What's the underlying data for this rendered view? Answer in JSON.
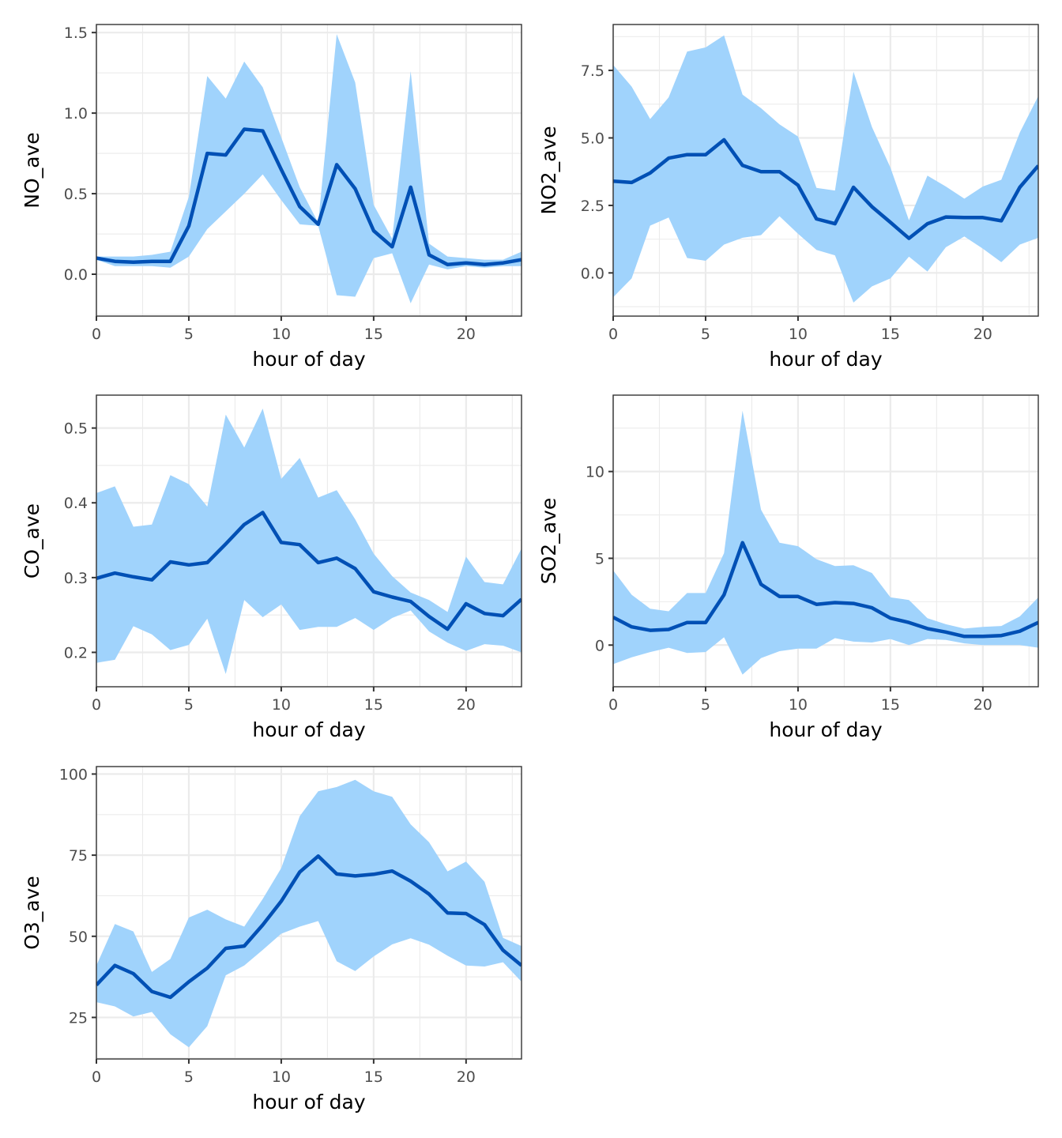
{
  "chart_data": [
    {
      "type": "area",
      "id": "no",
      "title": "",
      "xlabel": "hour of day",
      "ylabel": "NO_ave",
      "xlim": [
        0,
        23
      ],
      "ylim": [
        -0.26,
        1.55
      ],
      "xticks": [
        0,
        5,
        10,
        15,
        20
      ],
      "xtick_labels": [
        "0",
        "5",
        "10",
        "15",
        "20"
      ],
      "yticks": [
        0.0,
        0.5,
        1.0,
        1.5
      ],
      "ytick_labels": [
        "0.0",
        "0.5",
        "1.0",
        "1.5"
      ],
      "grid": true,
      "x": [
        0,
        1,
        2,
        3,
        4,
        5,
        6,
        7,
        8,
        9,
        10,
        11,
        12,
        13,
        14,
        15,
        16,
        17,
        18,
        19,
        20,
        21,
        22,
        23
      ],
      "series": [
        {
          "name": "mean",
          "values": [
            0.1,
            0.08,
            0.075,
            0.08,
            0.08,
            0.3,
            0.75,
            0.74,
            0.9,
            0.89,
            0.65,
            0.42,
            0.31,
            0.68,
            0.53,
            0.27,
            0.17,
            0.54,
            0.12,
            0.06,
            0.07,
            0.06,
            0.07,
            0.09
          ]
        },
        {
          "name": "upper",
          "values": [
            0.11,
            0.11,
            0.11,
            0.12,
            0.14,
            0.48,
            1.23,
            1.09,
            1.32,
            1.16,
            0.85,
            0.54,
            0.32,
            1.49,
            1.19,
            0.43,
            0.22,
            1.26,
            0.19,
            0.11,
            0.1,
            0.09,
            0.09,
            0.14
          ]
        },
        {
          "name": "lower",
          "values": [
            0.09,
            0.05,
            0.05,
            0.05,
            0.04,
            0.11,
            0.28,
            0.39,
            0.5,
            0.62,
            0.46,
            0.31,
            0.3,
            -0.13,
            -0.14,
            0.1,
            0.13,
            -0.18,
            0.06,
            0.03,
            0.05,
            0.04,
            0.05,
            0.05
          ]
        }
      ]
    },
    {
      "type": "area",
      "id": "no2",
      "title": "",
      "xlabel": "hour of day",
      "ylabel": "NO2_ave",
      "xlim": [
        0,
        23
      ],
      "ylim": [
        -1.6,
        9.2
      ],
      "xticks": [
        0,
        5,
        10,
        15,
        20
      ],
      "xtick_labels": [
        "0",
        "5",
        "10",
        "15",
        "20"
      ],
      "yticks": [
        0.0,
        2.5,
        5.0,
        7.5
      ],
      "ytick_labels": [
        "0.0",
        "2.5",
        "5.0",
        "7.5"
      ],
      "grid": true,
      "x": [
        0,
        1,
        2,
        3,
        4,
        5,
        6,
        7,
        8,
        9,
        10,
        11,
        12,
        13,
        14,
        15,
        16,
        17,
        18,
        19,
        20,
        21,
        22,
        23
      ],
      "series": [
        {
          "name": "mean",
          "values": [
            3.4,
            3.35,
            3.7,
            4.25,
            4.38,
            4.38,
            4.93,
            3.98,
            3.75,
            3.75,
            3.25,
            2.0,
            1.82,
            3.17,
            2.45,
            1.87,
            1.28,
            1.82,
            2.07,
            2.05,
            2.05,
            1.93,
            3.17,
            3.97
          ]
        },
        {
          "name": "upper",
          "values": [
            7.7,
            6.9,
            5.7,
            6.5,
            8.2,
            8.35,
            8.8,
            6.6,
            6.1,
            5.5,
            5.05,
            3.15,
            3.05,
            7.45,
            5.4,
            3.9,
            1.95,
            3.6,
            3.2,
            2.75,
            3.2,
            3.45,
            5.2,
            6.55
          ]
        },
        {
          "name": "lower",
          "values": [
            -0.9,
            -0.2,
            1.75,
            2.05,
            0.55,
            0.45,
            1.05,
            1.3,
            1.4,
            2.1,
            1.45,
            0.85,
            0.65,
            -1.1,
            -0.5,
            -0.2,
            0.6,
            0.05,
            0.95,
            1.35,
            0.9,
            0.4,
            1.05,
            1.3
          ]
        }
      ]
    },
    {
      "type": "area",
      "id": "co",
      "title": "",
      "xlabel": "hour of day",
      "ylabel": "CO_ave",
      "xlim": [
        0,
        23
      ],
      "ylim": [
        0.154,
        0.544
      ],
      "xticks": [
        0,
        5,
        10,
        15,
        20
      ],
      "xtick_labels": [
        "0",
        "5",
        "10",
        "15",
        "20"
      ],
      "yticks": [
        0.2,
        0.3,
        0.4,
        0.5
      ],
      "ytick_labels": [
        "0.2",
        "0.3",
        "0.4",
        "0.5"
      ],
      "grid": true,
      "x": [
        0,
        1,
        2,
        3,
        4,
        5,
        6,
        7,
        8,
        9,
        10,
        11,
        12,
        13,
        14,
        15,
        16,
        17,
        18,
        19,
        20,
        21,
        22,
        23
      ],
      "series": [
        {
          "name": "mean",
          "values": [
            0.299,
            0.306,
            0.301,
            0.297,
            0.321,
            0.317,
            0.32,
            0.345,
            0.371,
            0.387,
            0.347,
            0.344,
            0.32,
            0.326,
            0.312,
            0.281,
            0.274,
            0.268,
            0.248,
            0.231,
            0.265,
            0.252,
            0.249,
            0.271
          ]
        },
        {
          "name": "upper",
          "values": [
            0.413,
            0.422,
            0.368,
            0.371,
            0.437,
            0.425,
            0.395,
            0.518,
            0.474,
            0.526,
            0.432,
            0.46,
            0.407,
            0.417,
            0.378,
            0.332,
            0.302,
            0.28,
            0.27,
            0.254,
            0.328,
            0.294,
            0.291,
            0.339
          ]
        },
        {
          "name": "lower",
          "values": [
            0.186,
            0.19,
            0.235,
            0.224,
            0.203,
            0.21,
            0.245,
            0.171,
            0.27,
            0.247,
            0.264,
            0.23,
            0.234,
            0.234,
            0.246,
            0.23,
            0.246,
            0.256,
            0.228,
            0.213,
            0.202,
            0.211,
            0.209,
            0.2
          ]
        }
      ]
    },
    {
      "type": "area",
      "id": "so2",
      "title": "",
      "xlabel": "hour of day",
      "ylabel": "SO2_ave",
      "xlim": [
        0,
        23
      ],
      "ylim": [
        -2.4,
        14.4
      ],
      "xticks": [
        0,
        5,
        10,
        15,
        20
      ],
      "xtick_labels": [
        "0",
        "5",
        "10",
        "15",
        "20"
      ],
      "yticks": [
        0,
        5,
        10
      ],
      "ytick_labels": [
        "0",
        "5",
        "10"
      ],
      "grid": true,
      "x": [
        0,
        1,
        2,
        3,
        4,
        5,
        6,
        7,
        8,
        9,
        10,
        11,
        12,
        13,
        14,
        15,
        16,
        17,
        18,
        19,
        20,
        21,
        22,
        23
      ],
      "series": [
        {
          "name": "mean",
          "values": [
            1.6,
            1.05,
            0.85,
            0.9,
            1.3,
            1.3,
            2.9,
            5.9,
            3.5,
            2.8,
            2.8,
            2.35,
            2.45,
            2.4,
            2.15,
            1.55,
            1.3,
            0.95,
            0.75,
            0.5,
            0.5,
            0.55,
            0.8,
            1.3
          ]
        },
        {
          "name": "upper",
          "values": [
            4.3,
            2.9,
            2.1,
            1.95,
            3.0,
            3.0,
            5.3,
            13.5,
            7.8,
            5.9,
            5.7,
            4.95,
            4.55,
            4.6,
            4.15,
            2.75,
            2.6,
            1.55,
            1.2,
            0.95,
            1.05,
            1.1,
            1.65,
            2.75
          ]
        },
        {
          "name": "lower",
          "values": [
            -1.1,
            -0.7,
            -0.4,
            -0.15,
            -0.45,
            -0.4,
            0.45,
            -1.7,
            -0.75,
            -0.35,
            -0.2,
            -0.2,
            0.4,
            0.2,
            0.15,
            0.35,
            0.0,
            0.35,
            0.3,
            0.1,
            0.0,
            0.0,
            0.0,
            -0.15
          ]
        }
      ]
    },
    {
      "type": "area",
      "id": "o3",
      "title": "",
      "xlabel": "hour of day",
      "ylabel": "O3_ave",
      "xlim": [
        0,
        23
      ],
      "ylim": [
        12.2,
        102.3
      ],
      "xticks": [
        0,
        5,
        10,
        15,
        20
      ],
      "xtick_labels": [
        "0",
        "5",
        "10",
        "15",
        "20"
      ],
      "yticks": [
        25,
        50,
        75,
        100
      ],
      "ytick_labels": [
        "25",
        "50",
        "75",
        "100"
      ],
      "grid": true,
      "x": [
        0,
        1,
        2,
        3,
        4,
        5,
        6,
        7,
        8,
        9,
        10,
        11,
        12,
        13,
        14,
        15,
        16,
        17,
        18,
        19,
        20,
        21,
        22,
        23
      ],
      "series": [
        {
          "name": "mean",
          "values": [
            35,
            41,
            38.5,
            33,
            31.2,
            36,
            40.2,
            46.3,
            47,
            53.5,
            60.8,
            69.8,
            74.7,
            69.2,
            68.6,
            69.1,
            70.1,
            67,
            63,
            57.2,
            57,
            53.6,
            45.7,
            41
          ]
        },
        {
          "name": "upper",
          "values": [
            41,
            53.8,
            51.5,
            39,
            43,
            55.8,
            58.2,
            55.2,
            53,
            61.5,
            71,
            87,
            94.7,
            96,
            98.2,
            94.7,
            93,
            84.5,
            79,
            70,
            73,
            66.8,
            49.5,
            47
          ]
        },
        {
          "name": "lower",
          "values": [
            29.7,
            28.4,
            25.3,
            26.7,
            19.8,
            15.8,
            22.3,
            38,
            41,
            45.8,
            50.8,
            53,
            54.7,
            42.3,
            39.3,
            43.8,
            47.5,
            49.4,
            47.4,
            44,
            41,
            40.7,
            42,
            36
          ]
        }
      ]
    }
  ],
  "colors": {
    "line": "#0050b5",
    "ribbon": "#a0d3fc",
    "grid": "#ebebeb",
    "border": "#333333",
    "tick_text": "#4d4d4d"
  }
}
